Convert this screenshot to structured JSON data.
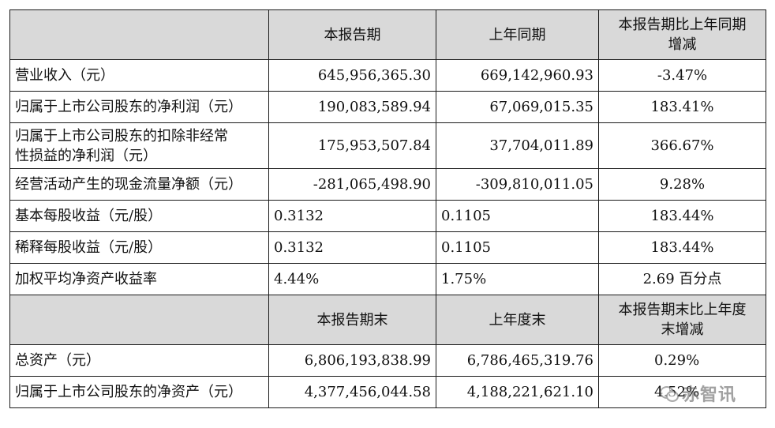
{
  "header1": {
    "col1": "本报告期",
    "col2": "上年同期",
    "col3_line1": "本报告期比上年同期",
    "col3_line2": "增减"
  },
  "rows1": [
    {
      "label": "营业收入（元）",
      "v1": "645,956,365.30",
      "v2": "669,142,960.93",
      "v3": "-3.47%"
    },
    {
      "label": "归属于上市公司股东的净利润（元）",
      "v1": "190,083,589.94",
      "v2": "67,069,015.35",
      "v3": "183.41%"
    },
    {
      "label_line1": "归属于上市公司股东的扣除非经常",
      "label_line2": "性损益的净利润（元）",
      "v1": "175,953,507.84",
      "v2": "37,704,011.89",
      "v3": "366.67%"
    },
    {
      "label": "经营活动产生的现金流量净额（元）",
      "v1": "-281,065,498.90",
      "v2": "-309,810,011.05",
      "v3": "9.28%"
    },
    {
      "label": "基本每股收益（元/股）",
      "v1": "0.3132",
      "v2": "0.1105",
      "v3": "183.44%"
    },
    {
      "label": "稀释每股收益（元/股）",
      "v1": "0.3132",
      "v2": "0.1105",
      "v3": "183.44%"
    },
    {
      "label": "加权平均净资产收益率",
      "v1": "4.44%",
      "v2": "1.75%",
      "v3": "2.69 百分点"
    }
  ],
  "header2": {
    "col1": "本报告期末",
    "col2": "上年度末",
    "col3_line1": "本报告期末比上年度",
    "col3_line2": "末增减"
  },
  "rows2": [
    {
      "label": "总资产（元）",
      "v1": "6,806,193,838.99",
      "v2": "6,786,465,319.76",
      "v3": "0.29%"
    },
    {
      "label": "归属于上市公司股东的净资产（元）",
      "v1": "4,377,456,044.58",
      "v2": "4,188,221,621.10",
      "v3": "4.52%"
    }
  ],
  "watermark": {
    "text": "赤智讯",
    "icon": "wechat-icon"
  }
}
